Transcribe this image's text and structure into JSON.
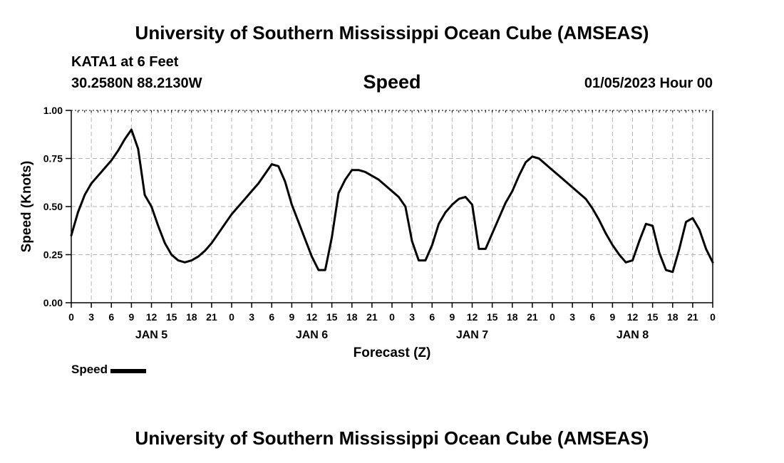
{
  "header": {
    "title": "University of Southern Mississippi Ocean Cube (AMSEAS)",
    "station": "KATA1 at 6 Feet",
    "coordinates": "30.2580N  88.2130W",
    "chart_title": "Speed",
    "datetime": "01/05/2023 Hour 00"
  },
  "footer": {
    "title": "University of Southern Mississippi Ocean Cube (AMSEAS)"
  },
  "legend": {
    "label": "Speed",
    "color": "#000000"
  },
  "chart_data": {
    "type": "line",
    "title": "Speed",
    "xlabel": "Forecast (Z)",
    "ylabel": "Speed (Knots)",
    "xlim": [
      0,
      96
    ],
    "ylim": [
      0,
      1
    ],
    "grid": true,
    "yticks": [
      0,
      0.25,
      0.5,
      0.75,
      1.0
    ],
    "ytick_labels": [
      "0.00",
      "0.25",
      "0.50",
      "0.75",
      "1.00"
    ],
    "xticks": [
      0,
      3,
      6,
      9,
      12,
      15,
      18,
      21,
      24,
      27,
      30,
      33,
      36,
      39,
      42,
      45,
      48,
      51,
      54,
      57,
      60,
      63,
      66,
      69,
      72,
      75,
      78,
      81,
      84,
      87,
      90,
      93,
      96
    ],
    "xtick_labels": [
      "0",
      "3",
      "6",
      "9",
      "12",
      "15",
      "18",
      "21",
      "0",
      "3",
      "6",
      "9",
      "12",
      "15",
      "18",
      "21",
      "0",
      "3",
      "6",
      "9",
      "12",
      "15",
      "18",
      "21",
      "0",
      "3",
      "6",
      "9",
      "12",
      "15",
      "18",
      "21",
      "0"
    ],
    "day_labels": [
      {
        "label": "JAN 5",
        "hour": 12
      },
      {
        "label": "JAN 6",
        "hour": 36
      },
      {
        "label": "JAN 7",
        "hour": 60
      },
      {
        "label": "JAN 8",
        "hour": 84
      }
    ],
    "series": [
      {
        "name": "Speed",
        "color": "#000000",
        "x": [
          0,
          1,
          2,
          3,
          4,
          5,
          6,
          7,
          8,
          9,
          10,
          11,
          12,
          13,
          14,
          15,
          16,
          17,
          18,
          19,
          20,
          21,
          22,
          23,
          24,
          25,
          26,
          27,
          28,
          29,
          30,
          31,
          32,
          33,
          34,
          35,
          36,
          37,
          38,
          39,
          40,
          41,
          42,
          43,
          44,
          45,
          46,
          47,
          48,
          49,
          50,
          51,
          52,
          53,
          54,
          55,
          56,
          57,
          58,
          59,
          60,
          61,
          62,
          63,
          64,
          65,
          66,
          67,
          68,
          69,
          70,
          71,
          72,
          73,
          74,
          75,
          76,
          77,
          78,
          79,
          80,
          81,
          82,
          83,
          84,
          85,
          86,
          87,
          88,
          89,
          90,
          91,
          92,
          93,
          94,
          95,
          96
        ],
        "values": [
          0.35,
          0.47,
          0.56,
          0.62,
          0.66,
          0.7,
          0.74,
          0.79,
          0.85,
          0.9,
          0.8,
          0.56,
          0.5,
          0.4,
          0.31,
          0.25,
          0.22,
          0.21,
          0.22,
          0.24,
          0.27,
          0.31,
          0.36,
          0.41,
          0.46,
          0.5,
          0.54,
          0.58,
          0.62,
          0.67,
          0.72,
          0.71,
          0.63,
          0.51,
          0.42,
          0.33,
          0.24,
          0.17,
          0.17,
          0.34,
          0.57,
          0.64,
          0.69,
          0.69,
          0.68,
          0.66,
          0.64,
          0.61,
          0.58,
          0.55,
          0.5,
          0.32,
          0.22,
          0.22,
          0.3,
          0.41,
          0.47,
          0.51,
          0.54,
          0.55,
          0.51,
          0.28,
          0.28,
          0.36,
          0.44,
          0.52,
          0.58,
          0.66,
          0.73,
          0.76,
          0.75,
          0.72,
          0.69,
          0.66,
          0.63,
          0.6,
          0.57,
          0.54,
          0.49,
          0.43,
          0.36,
          0.3,
          0.25,
          0.21,
          0.22,
          0.32,
          0.41,
          0.4,
          0.26,
          0.17,
          0.16,
          0.28,
          0.42,
          0.44,
          0.38,
          0.28,
          0.21
        ]
      }
    ]
  }
}
